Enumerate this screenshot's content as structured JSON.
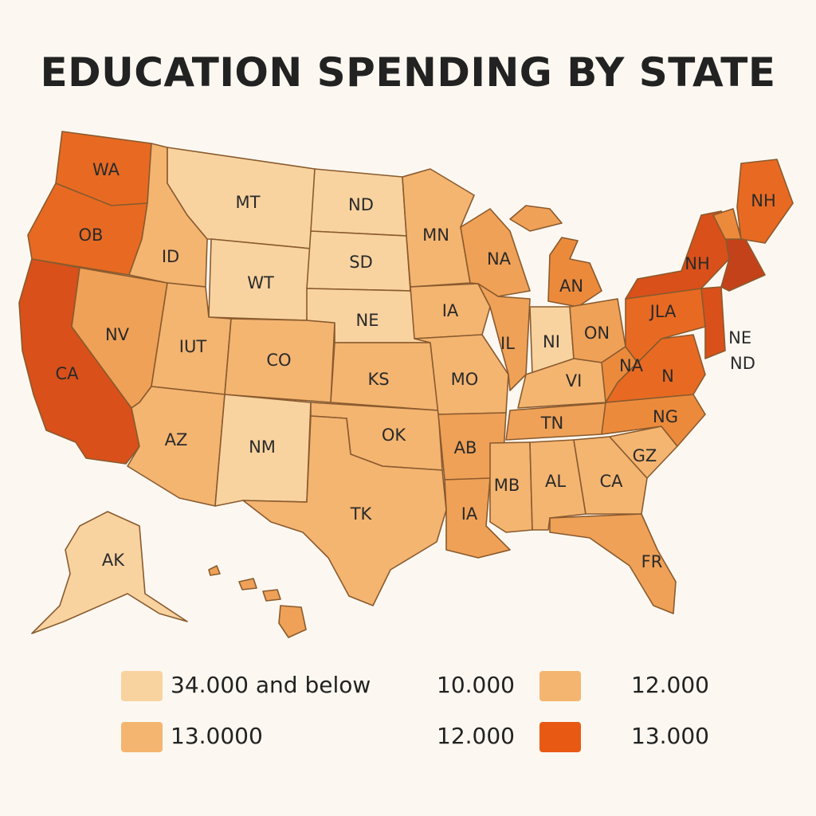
{
  "title": "EDUCATION SPENDING BY STATE",
  "colors": {
    "c1": "#f8d3a0",
    "c2": "#f4b571",
    "c3": "#efa157",
    "c4": "#ec8a3c",
    "c5": "#e86a22",
    "c6": "#d9501a",
    "c7": "#c4421a",
    "background": "#fcf8f1"
  },
  "states": [
    {
      "id": "WA",
      "label": "WA"
    },
    {
      "id": "OR",
      "label": "OB"
    },
    {
      "id": "CA",
      "label": "CA"
    },
    {
      "id": "NV",
      "label": "NV"
    },
    {
      "id": "ID",
      "label": "ID"
    },
    {
      "id": "MT",
      "label": "MT"
    },
    {
      "id": "WY",
      "label": "WT"
    },
    {
      "id": "UT",
      "label": "IUT"
    },
    {
      "id": "CO",
      "label": "CO"
    },
    {
      "id": "AZ",
      "label": "AZ"
    },
    {
      "id": "NM",
      "label": "NM"
    },
    {
      "id": "ND",
      "label": "ND"
    },
    {
      "id": "SD",
      "label": "SD"
    },
    {
      "id": "NE",
      "label": "NE"
    },
    {
      "id": "KS",
      "label": "KS"
    },
    {
      "id": "OK",
      "label": "OK"
    },
    {
      "id": "TX",
      "label": "TK"
    },
    {
      "id": "MN",
      "label": "MN"
    },
    {
      "id": "IA",
      "label": "IA"
    },
    {
      "id": "MO",
      "label": "MO"
    },
    {
      "id": "AR",
      "label": "AB"
    },
    {
      "id": "LA",
      "label": "IA"
    },
    {
      "id": "WI",
      "label": "NA"
    },
    {
      "id": "IL",
      "label": "IL"
    },
    {
      "id": "MI",
      "label": "AN"
    },
    {
      "id": "IN",
      "label": "NI"
    },
    {
      "id": "OH",
      "label": "ON"
    },
    {
      "id": "KY",
      "label": "VI"
    },
    {
      "id": "TN",
      "label": "TN"
    },
    {
      "id": "MS",
      "label": "MB"
    },
    {
      "id": "AL",
      "label": "AL"
    },
    {
      "id": "GA",
      "label": "CA"
    },
    {
      "id": "FL",
      "label": "FR"
    },
    {
      "id": "SC",
      "label": "GZ"
    },
    {
      "id": "NC",
      "label": "NG"
    },
    {
      "id": "VA",
      "label": "N"
    },
    {
      "id": "WV",
      "label": "NA"
    },
    {
      "id": "PA",
      "label": "JLA"
    },
    {
      "id": "NY",
      "label": "NH"
    },
    {
      "id": "ME",
      "label": "NH"
    },
    {
      "id": "AK",
      "label": "AK"
    },
    {
      "id": "MID",
      "label": "NE\nND"
    }
  ],
  "legend": [
    {
      "label": "34.000 and below",
      "color": "#f8d3a0"
    },
    {
      "label": "10.000",
      "color": ""
    },
    {
      "label": "",
      "color": "#f4b571"
    },
    {
      "label": "12.000",
      "color": ""
    },
    {
      "label": "13.0000",
      "color": "#f4b571"
    },
    {
      "label": "12.000",
      "color": ""
    },
    {
      "label": "",
      "color": "#e85a14"
    },
    {
      "label": "13.000",
      "color": ""
    }
  ]
}
